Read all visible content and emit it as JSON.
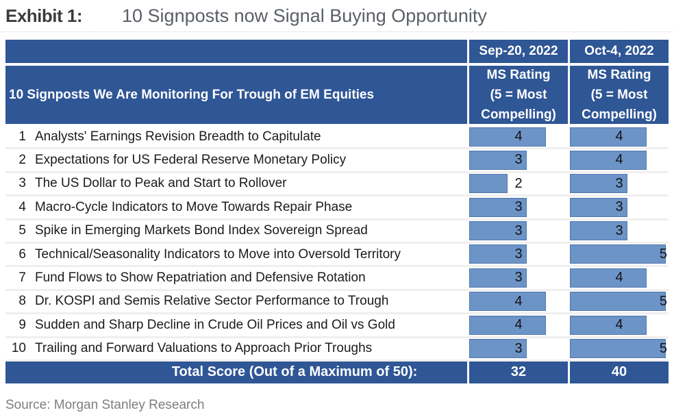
{
  "title": {
    "exhibit": "Exhibit 1:",
    "text": "10 Signposts now Signal Buying Opportunity"
  },
  "source": "Source: Morgan Stanley Research",
  "table": {
    "row_header": "10 Signposts We Are Monitoring For Trough of EM Equities",
    "max_rating": 5,
    "columns": [
      {
        "date": "Sep-20, 2022",
        "subheader": "MS Rating\n(5 = Most\nCompelling)"
      },
      {
        "date": "Oct-4, 2022",
        "subheader": "MS Rating\n(5 = Most\nCompelling)"
      }
    ],
    "rows": [
      {
        "num": "1",
        "label": "Analysts' Earnings Revision Breadth to Capitulate",
        "ratings": [
          4,
          4
        ]
      },
      {
        "num": "2",
        "label": "Expectations for US Federal Reserve Monetary Policy",
        "ratings": [
          3,
          4
        ]
      },
      {
        "num": "3",
        "label": "The US Dollar to Peak and Start to Rollover",
        "ratings": [
          2,
          3
        ]
      },
      {
        "num": "4",
        "label": "Macro-Cycle Indicators to Move Towards Repair Phase",
        "ratings": [
          3,
          3
        ]
      },
      {
        "num": "5",
        "label": "Spike in Emerging Markets Bond Index Sovereign Spread",
        "ratings": [
          3,
          3
        ]
      },
      {
        "num": "6",
        "label": "Technical/Seasonality Indicators to Move into Oversold Territory",
        "ratings": [
          3,
          5
        ]
      },
      {
        "num": "7",
        "label": "Fund Flows to Show Repatriation and Defensive Rotation",
        "ratings": [
          3,
          4
        ]
      },
      {
        "num": "8",
        "label": "Dr. KOSPI and Semis Relative Sector Performance to Trough",
        "ratings": [
          4,
          5
        ]
      },
      {
        "num": "9",
        "label": "Sudden and Sharp Decline in Crude Oil Prices and Oil vs Gold",
        "ratings": [
          4,
          4
        ]
      },
      {
        "num": "10",
        "label": "Trailing and Forward Valuations to Approach Prior Troughs",
        "ratings": [
          3,
          5
        ]
      }
    ],
    "total": {
      "label": "Total Score (Out of a Maximum of 50):",
      "values": [
        "32",
        "40"
      ]
    }
  },
  "colors": {
    "header_blue": "#2F5695",
    "bar_fill": "#6D94C7",
    "bar_border": "#4E76AC",
    "row_separator": "#EFEFEF",
    "title_dark": "#3C3C3C",
    "subtitle_gray": "#5A5F66",
    "source_gray": "#7E7E7E"
  },
  "chart_data": {
    "type": "table",
    "title": "10 Signposts now Signal Buying Opportunity",
    "subtitle_note": "Exhibit 1",
    "columns": [
      "Signpost",
      "Sep-20, 2022 MS Rating (5 = Most Compelling)",
      "Oct-4, 2022 MS Rating (5 = Most Compelling)"
    ],
    "rows": [
      [
        "Analysts' Earnings Revision Breadth to Capitulate",
        4,
        4
      ],
      [
        "Expectations for US Federal Reserve Monetary Policy",
        3,
        4
      ],
      [
        "The US Dollar to Peak and Start to Rollover",
        2,
        3
      ],
      [
        "Macro-Cycle Indicators to Move Towards Repair Phase",
        3,
        3
      ],
      [
        "Spike in Emerging Markets Bond Index Sovereign Spread",
        3,
        3
      ],
      [
        "Technical/Seasonality Indicators to Move into Oversold Territory",
        3,
        5
      ],
      [
        "Fund Flows to Show Repatriation and Defensive Rotation",
        3,
        4
      ],
      [
        "Dr. KOSPI and Semis Relative Sector Performance to Trough",
        4,
        5
      ],
      [
        "Sudden and Sharp Decline in Crude Oil Prices and Oil vs Gold",
        4,
        4
      ],
      [
        "Trailing and Forward Valuations to Approach Prior Troughs",
        3,
        5
      ]
    ],
    "totals": {
      "label": "Total Score (Out of a Maximum of 50):",
      "Sep-20, 2022": 32,
      "Oct-4, 2022": 40
    },
    "value_range": [
      0,
      5
    ],
    "bar_style": "in-cell data bars, width proportional to rating / 5",
    "source": "Source: Morgan Stanley Research"
  }
}
